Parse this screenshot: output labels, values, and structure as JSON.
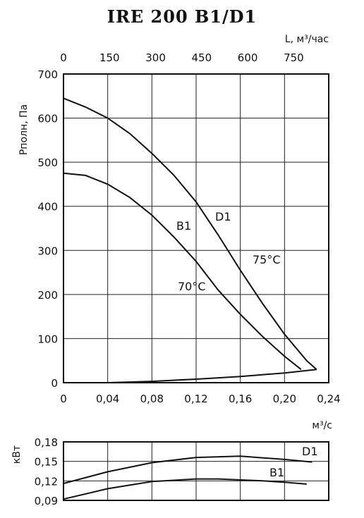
{
  "chart_data": [
    {
      "type": "line",
      "title": "IRE 200 B1/D1",
      "xlabel": "м³/с",
      "ylabel": "Pполн, Па",
      "xlim": [
        0,
        0.24
      ],
      "ylim": [
        0,
        700
      ],
      "x_ticks": [
        "0",
        "0,04",
        "0,08",
        "0,12",
        "0,16",
        "0,20",
        "0,24"
      ],
      "y_ticks": [
        "0",
        "100",
        "200",
        "300",
        "400",
        "500",
        "600",
        "700"
      ],
      "secondary_x": {
        "label": "L, м³/час",
        "ticks": [
          "0",
          "150",
          "300",
          "450",
          "600",
          "750"
        ],
        "lim": [
          0,
          864
        ]
      },
      "grid": true,
      "series": [
        {
          "name": "D1",
          "x": [
            0,
            0.02,
            0.04,
            0.06,
            0.08,
            0.1,
            0.12,
            0.14,
            0.16,
            0.18,
            0.2,
            0.22,
            0.229
          ],
          "y": [
            645,
            625,
            600,
            565,
            520,
            470,
            410,
            335,
            255,
            180,
            110,
            50,
            30
          ]
        },
        {
          "name": "B1",
          "x": [
            0,
            0.02,
            0.04,
            0.06,
            0.08,
            0.1,
            0.12,
            0.14,
            0.16,
            0.18,
            0.2,
            0.215
          ],
          "y": [
            475,
            470,
            450,
            420,
            380,
            330,
            275,
            210,
            155,
            105,
            60,
            30
          ]
        },
        {
          "name": "",
          "x": [
            0.04,
            0.08,
            0.12,
            0.16,
            0.2,
            0.229
          ],
          "y": [
            0,
            3,
            8,
            14,
            22,
            30
          ]
        }
      ],
      "annotations": [
        "D1",
        "B1",
        "75°C",
        "70°C"
      ]
    },
    {
      "type": "line",
      "ylabel": "кВт",
      "xlim": [
        0,
        0.24
      ],
      "ylim": [
        0.09,
        0.18
      ],
      "y_ticks": [
        "0,18",
        "0,15",
        "0,12",
        "0,09"
      ],
      "grid": true,
      "series": [
        {
          "name": "D1",
          "x": [
            0,
            0.04,
            0.08,
            0.12,
            0.16,
            0.2,
            0.225
          ],
          "y": [
            0.116,
            0.134,
            0.148,
            0.156,
            0.158,
            0.153,
            0.149
          ]
        },
        {
          "name": "B1",
          "x": [
            0,
            0.04,
            0.08,
            0.12,
            0.14,
            0.18,
            0.2,
            0.22
          ],
          "y": [
            0.092,
            0.108,
            0.119,
            0.123,
            0.123,
            0.12,
            0.118,
            0.115
          ]
        }
      ]
    }
  ]
}
